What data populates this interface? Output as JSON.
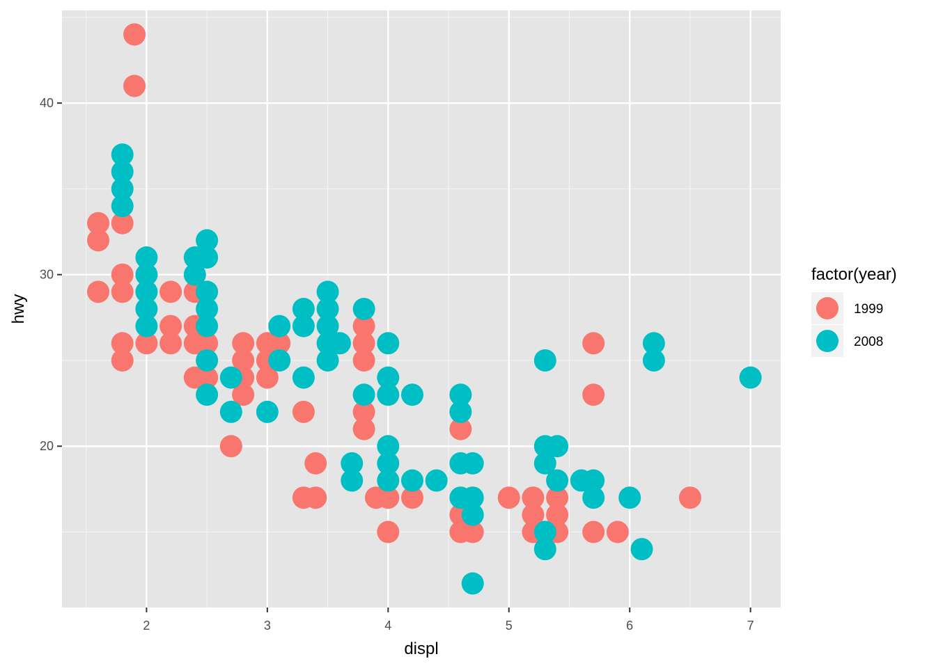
{
  "chart_data": {
    "type": "scatter",
    "title": "",
    "xlabel": "displ",
    "ylabel": "hwy",
    "xlim": [
      1.3,
      7.25
    ],
    "ylim": [
      10.6,
      45.4
    ],
    "x_ticks": [
      2,
      3,
      4,
      5,
      6,
      7
    ],
    "x_tick_labels": [
      "2",
      "3",
      "4",
      "5",
      "6",
      "7"
    ],
    "y_ticks": [
      20,
      30,
      40
    ],
    "y_tick_labels": [
      "20",
      "30",
      "40"
    ],
    "grid": true,
    "panel_background": "#e5e5e5",
    "legend": {
      "title": "factor(year)",
      "placement": "right",
      "entries": [
        {
          "label": "1999",
          "color": "#f8766d"
        },
        {
          "label": "2008",
          "color": "#00bfc4"
        }
      ]
    },
    "series": [
      {
        "name": "1999",
        "color": "#f8766d",
        "points": [
          [
            1.9,
            44
          ],
          [
            1.9,
            41
          ],
          [
            1.6,
            33
          ],
          [
            1.8,
            33
          ],
          [
            1.6,
            32
          ],
          [
            1.6,
            29
          ],
          [
            1.8,
            30
          ],
          [
            1.8,
            29
          ],
          [
            2.2,
            29
          ],
          [
            2.4,
            29
          ],
          [
            1.8,
            26
          ],
          [
            1.8,
            25
          ],
          [
            2.0,
            26
          ],
          [
            2.2,
            27
          ],
          [
            2.2,
            26
          ],
          [
            2.4,
            27
          ],
          [
            2.4,
            26
          ],
          [
            2.5,
            26
          ],
          [
            2.4,
            24
          ],
          [
            2.5,
            24
          ],
          [
            2.7,
            20
          ],
          [
            2.8,
            26
          ],
          [
            2.8,
            25
          ],
          [
            2.8,
            24
          ],
          [
            2.8,
            23
          ],
          [
            3.0,
            26
          ],
          [
            3.1,
            26
          ],
          [
            3.0,
            25
          ],
          [
            3.0,
            24
          ],
          [
            3.3,
            22
          ],
          [
            3.4,
            19
          ],
          [
            3.3,
            17
          ],
          [
            3.4,
            17
          ],
          [
            3.8,
            27
          ],
          [
            3.8,
            26
          ],
          [
            3.8,
            25
          ],
          [
            3.8,
            22
          ],
          [
            3.8,
            21
          ],
          [
            3.9,
            17
          ],
          [
            4.0,
            17
          ],
          [
            4.2,
            17
          ],
          [
            4.0,
            15
          ],
          [
            4.6,
            21
          ],
          [
            4.6,
            16
          ],
          [
            4.6,
            15
          ],
          [
            4.7,
            15
          ],
          [
            5.0,
            17
          ],
          [
            5.2,
            17
          ],
          [
            5.2,
            16
          ],
          [
            5.2,
            15
          ],
          [
            5.4,
            17
          ],
          [
            5.4,
            16
          ],
          [
            5.4,
            15
          ],
          [
            5.7,
            26
          ],
          [
            5.7,
            23
          ],
          [
            5.7,
            15
          ],
          [
            5.9,
            15
          ],
          [
            6.5,
            17
          ]
        ]
      },
      {
        "name": "2008",
        "color": "#00bfc4",
        "points": [
          [
            1.8,
            37
          ],
          [
            1.8,
            36
          ],
          [
            1.8,
            35
          ],
          [
            1.8,
            34
          ],
          [
            2.0,
            31
          ],
          [
            2.0,
            30
          ],
          [
            2.0,
            29
          ],
          [
            2.0,
            28
          ],
          [
            2.0,
            27
          ],
          [
            2.4,
            31
          ],
          [
            2.4,
            30
          ],
          [
            2.5,
            32
          ],
          [
            2.5,
            31
          ],
          [
            2.5,
            29
          ],
          [
            2.5,
            28
          ],
          [
            2.5,
            27
          ],
          [
            2.5,
            25
          ],
          [
            2.5,
            23
          ],
          [
            2.7,
            24
          ],
          [
            2.7,
            22
          ],
          [
            3.0,
            22
          ],
          [
            3.1,
            27
          ],
          [
            3.1,
            25
          ],
          [
            3.3,
            28
          ],
          [
            3.3,
            27
          ],
          [
            3.3,
            24
          ],
          [
            3.5,
            29
          ],
          [
            3.5,
            28
          ],
          [
            3.5,
            27
          ],
          [
            3.5,
            26
          ],
          [
            3.5,
            25
          ],
          [
            3.6,
            26
          ],
          [
            3.7,
            19
          ],
          [
            3.7,
            18
          ],
          [
            3.8,
            28
          ],
          [
            3.8,
            23
          ],
          [
            4.0,
            26
          ],
          [
            4.0,
            24
          ],
          [
            4.0,
            23
          ],
          [
            4.0,
            20
          ],
          [
            4.0,
            19
          ],
          [
            4.0,
            18
          ],
          [
            4.2,
            23
          ],
          [
            4.2,
            18
          ],
          [
            4.4,
            18
          ],
          [
            4.6,
            23
          ],
          [
            4.6,
            22
          ],
          [
            4.6,
            19
          ],
          [
            4.6,
            17
          ],
          [
            4.7,
            19
          ],
          [
            4.7,
            17
          ],
          [
            4.7,
            16
          ],
          [
            4.7,
            12
          ],
          [
            5.3,
            25
          ],
          [
            5.3,
            20
          ],
          [
            5.3,
            19
          ],
          [
            5.3,
            15
          ],
          [
            5.3,
            14
          ],
          [
            5.4,
            20
          ],
          [
            5.4,
            18
          ],
          [
            5.6,
            18
          ],
          [
            5.7,
            18
          ],
          [
            5.7,
            17
          ],
          [
            6.0,
            17
          ],
          [
            6.1,
            14
          ],
          [
            6.2,
            26
          ],
          [
            6.2,
            25
          ],
          [
            7.0,
            24
          ]
        ]
      }
    ]
  }
}
